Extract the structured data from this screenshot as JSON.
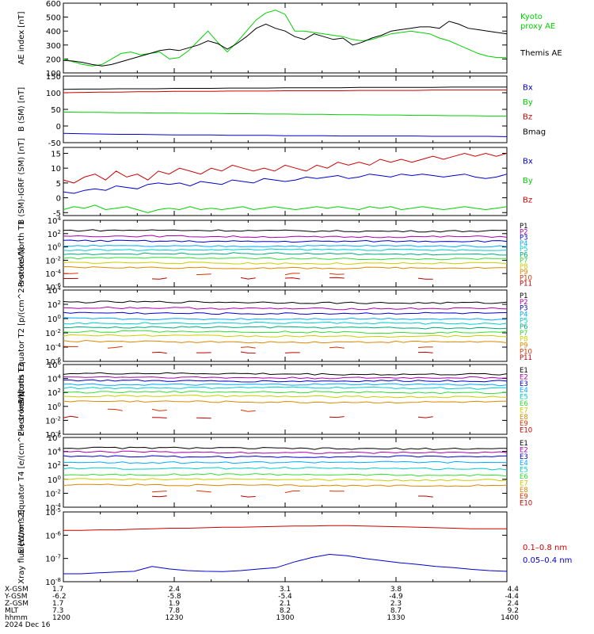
{
  "chart_data": [
    {
      "type": "line",
      "ylabel": "AE index [nT]",
      "ylim": [
        100,
        600
      ],
      "yticks": [
        100,
        200,
        300,
        400,
        500,
        600
      ],
      "scale": "linear",
      "series": [
        {
          "name": "Kyoto proxy AE",
          "color": "#00d000",
          "values": [
            200,
            180,
            160,
            150,
            160,
            200,
            240,
            250,
            230,
            240,
            250,
            200,
            210,
            260,
            330,
            400,
            320,
            250,
            320,
            400,
            480,
            530,
            550,
            520,
            400,
            400,
            390,
            380,
            370,
            360,
            340,
            330,
            340,
            360,
            380,
            390,
            400,
            390,
            380,
            350,
            330,
            300,
            270,
            240,
            220,
            210,
            210
          ]
        },
        {
          "name": "Themis AE",
          "color": "#000000",
          "values": [
            190,
            185,
            175,
            160,
            150,
            160,
            180,
            200,
            220,
            240,
            260,
            270,
            260,
            280,
            300,
            330,
            310,
            270,
            310,
            360,
            420,
            450,
            420,
            400,
            360,
            340,
            380,
            360,
            340,
            350,
            300,
            320,
            350,
            370,
            400,
            410,
            420,
            430,
            430,
            420,
            470,
            450,
            420,
            410,
            400,
            390,
            380
          ]
        }
      ]
    },
    {
      "type": "line",
      "ylabel": "B (SM) [nT]",
      "ylim": [
        -50,
        150
      ],
      "yticks": [
        -50,
        0,
        50,
        100,
        150
      ],
      "scale": "linear",
      "series": [
        {
          "name": "Bx",
          "color": "#0000cc",
          "values": [
            -22,
            -23,
            -24,
            -25,
            -25,
            -26,
            -27,
            -27,
            -27,
            -28,
            -28,
            -28,
            -29,
            -29,
            -29,
            -30,
            -30,
            -30,
            -30,
            -30,
            -31,
            -31,
            -31,
            -31,
            -32
          ]
        },
        {
          "name": "By",
          "color": "#00d000",
          "values": [
            42,
            41,
            41,
            40,
            40,
            39,
            39,
            38,
            38,
            37,
            37,
            36,
            36,
            35,
            35,
            34,
            34,
            33,
            33,
            32,
            32,
            31,
            31,
            30,
            30
          ]
        },
        {
          "name": "Bz",
          "color": "#cc0000",
          "values": [
            100,
            101,
            102,
            102,
            103,
            103,
            104,
            104,
            104,
            105,
            105,
            105,
            106,
            106,
            106,
            106,
            107,
            107,
            107,
            107,
            108,
            108,
            108,
            108,
            108
          ]
        },
        {
          "name": "Bmag",
          "color": "#000000",
          "values": [
            110,
            111,
            111,
            112,
            112,
            112,
            113,
            113,
            113,
            114,
            114,
            114,
            115,
            115,
            115,
            115,
            116,
            116,
            116,
            116,
            116,
            117,
            117,
            117,
            117
          ]
        }
      ]
    },
    {
      "type": "line",
      "ylabel": "B (SM)-IGRF (SM) [nT]",
      "ylim": [
        -6,
        17
      ],
      "yticks": [
        -5,
        0,
        5,
        10,
        15
      ],
      "scale": "linear",
      "series": [
        {
          "name": "Bx",
          "color": "#0000cc",
          "values": [
            2,
            1.5,
            2.5,
            3,
            2.5,
            4,
            3.5,
            3,
            4.5,
            5,
            4.5,
            5,
            4,
            5.5,
            5,
            4.5,
            6,
            5.5,
            5,
            6.5,
            6,
            5.5,
            6,
            7,
            6.5,
            7,
            7.5,
            6.5,
            7,
            8,
            7.5,
            7,
            8,
            7.5,
            8,
            7.5,
            7,
            7.5,
            8,
            7,
            6.5,
            7,
            8
          ]
        },
        {
          "name": "By",
          "color": "#00d000",
          "values": [
            -4,
            -3,
            -3.5,
            -2.5,
            -4,
            -3.5,
            -3,
            -4,
            -5,
            -4,
            -3.5,
            -4,
            -3,
            -4,
            -3.5,
            -4,
            -3.5,
            -3,
            -4,
            -3.5,
            -3,
            -3.5,
            -4,
            -3.5,
            -3,
            -3.5,
            -3,
            -3.5,
            -4,
            -3,
            -3.5,
            -3,
            -4,
            -3.5,
            -3,
            -3.5,
            -4,
            -3.5,
            -3,
            -3.5,
            -4,
            -3.5,
            -3
          ]
        },
        {
          "name": "Bz",
          "color": "#cc0000",
          "values": [
            6,
            5,
            7,
            8,
            6,
            9,
            7,
            8,
            6,
            9,
            8,
            10,
            9,
            8,
            10,
            9,
            11,
            10,
            9,
            10,
            9,
            11,
            10,
            9,
            11,
            10,
            12,
            11,
            12,
            11,
            13,
            12,
            13,
            12,
            13,
            14,
            13,
            14,
            15,
            14,
            15,
            14,
            15
          ]
        }
      ]
    },
    {
      "type": "line",
      "ylabel": "Protons North T1",
      "scale": "log",
      "ylim": [
        1e-06,
        10000.0
      ],
      "yticks": [
        "10^-6",
        "10^-4",
        "10^-2",
        "10^0",
        "10^2",
        "10^4"
      ],
      "legend": [
        {
          "name": "P1",
          "color": "#000000"
        },
        {
          "name": "P2",
          "color": "#aa00aa"
        },
        {
          "name": "P3",
          "color": "#0000cc"
        },
        {
          "name": "P4",
          "color": "#00aaff"
        },
        {
          "name": "P5",
          "color": "#00cccc"
        },
        {
          "name": "P6",
          "color": "#00aa77"
        },
        {
          "name": "P7",
          "color": "#33dd33"
        },
        {
          "name": "P8",
          "color": "#cccc00"
        },
        {
          "name": "P9",
          "color": "#dd8800"
        },
        {
          "name": "P10",
          "color": "#dd3300"
        },
        {
          "name": "P11",
          "color": "#bb0000"
        }
      ],
      "levels": [
        300,
        40,
        8,
        1.5,
        0.4,
        0.1,
        0.02,
        0.004,
        0.0008,
        0.0001,
        2e-05
      ]
    },
    {
      "type": "line",
      "ylabel": "Protons Equator T2 [p/(cm^2-s-sr-keV)]",
      "scale": "log",
      "ylim": [
        1e-06,
        10000.0
      ],
      "yticks": [
        "10^-6",
        "10^-4",
        "10^-2",
        "10^0",
        "10^2",
        "10^4"
      ],
      "legend": [
        {
          "name": "P1",
          "color": "#000000"
        },
        {
          "name": "P2",
          "color": "#aa00aa"
        },
        {
          "name": "P3",
          "color": "#0000cc"
        },
        {
          "name": "P4",
          "color": "#00aaff"
        },
        {
          "name": "P5",
          "color": "#00cccc"
        },
        {
          "name": "P6",
          "color": "#00aa77"
        },
        {
          "name": "P7",
          "color": "#33dd33"
        },
        {
          "name": "P8",
          "color": "#cccc00"
        },
        {
          "name": "P9",
          "color": "#dd8800"
        },
        {
          "name": "P10",
          "color": "#dd3300"
        },
        {
          "name": "P11",
          "color": "#bb0000"
        }
      ],
      "levels": [
        200,
        30,
        6,
        1,
        0.25,
        0.06,
        0.015,
        0.004,
        0.0006,
        0.0001,
        2e-05
      ]
    },
    {
      "type": "line",
      "ylabel": "Electrons North T3",
      "scale": "log",
      "ylim": [
        0.0001,
        1000000.0
      ],
      "yticks": [
        "10^-4",
        "10^-2",
        "10^0",
        "10^2",
        "10^4",
        "10^6"
      ],
      "legend": [
        {
          "name": "E1",
          "color": "#000000"
        },
        {
          "name": "E2",
          "color": "#aa00aa"
        },
        {
          "name": "E3",
          "color": "#0000cc"
        },
        {
          "name": "E4",
          "color": "#00aaff"
        },
        {
          "name": "E5",
          "color": "#00cccc"
        },
        {
          "name": "E6",
          "color": "#33dd33"
        },
        {
          "name": "E7",
          "color": "#cccc00"
        },
        {
          "name": "E8",
          "color": "#dd8800"
        },
        {
          "name": "E9",
          "color": "#dd3300"
        },
        {
          "name": "E10",
          "color": "#bb0000"
        }
      ],
      "levels": [
        50000,
        15000,
        5000,
        1500,
        500,
        120,
        30,
        5,
        0.3,
        0.03
      ]
    },
    {
      "type": "line",
      "ylabel": "Electrons Equator T4 [e/(cm^2-s-sr-keV)]",
      "scale": "log",
      "ylim": [
        0.0001,
        1000000.0
      ],
      "yticks": [
        "10^-4",
        "10^-2",
        "10^0",
        "10^2",
        "10^4",
        "10^6"
      ],
      "legend": [
        {
          "name": "E1",
          "color": "#000000"
        },
        {
          "name": "E2",
          "color": "#aa00aa"
        },
        {
          "name": "E3",
          "color": "#0000cc"
        },
        {
          "name": "E4",
          "color": "#00aaff"
        },
        {
          "name": "E5",
          "color": "#00cccc"
        },
        {
          "name": "E6",
          "color": "#33dd33"
        },
        {
          "name": "E7",
          "color": "#cccc00"
        },
        {
          "name": "E8",
          "color": "#dd8800"
        },
        {
          "name": "E9",
          "color": "#dd3300"
        },
        {
          "name": "E10",
          "color": "#bb0000"
        }
      ],
      "levels": [
        30000,
        8000,
        2000,
        300,
        40,
        5,
        1,
        0.15,
        0.02,
        0.004
      ]
    },
    {
      "type": "line",
      "ylabel": "Xray flux [W/m^2]",
      "scale": "log",
      "ylim": [
        1e-08,
        1e-05
      ],
      "yticks": [
        "10^-8",
        "10^-7",
        "10^-6",
        "10^-5"
      ],
      "series": [
        {
          "name": "0.1–0.8 nm",
          "color": "#cc0000",
          "values": [
            1.6e-06,
            1.6e-06,
            1.7e-06,
            1.7e-06,
            1.8e-06,
            1.9e-06,
            2e-06,
            2e-06,
            2.1e-06,
            2.2e-06,
            2.2e-06,
            2.3e-06,
            2.4e-06,
            2.5e-06,
            2.5e-06,
            2.6e-06,
            2.6e-06,
            2.5e-06,
            2.4e-06,
            2.3e-06,
            2.2e-06,
            2.1e-06,
            2e-06,
            1.9e-06,
            1.9e-06,
            1.9e-06
          ]
        },
        {
          "name": "0.05–0.4 nm",
          "color": "#0000cc",
          "values": [
            2.2e-08,
            2.2e-08,
            2.4e-08,
            2.6e-08,
            2.8e-08,
            4.5e-08,
            3.5e-08,
            3e-08,
            2.8e-08,
            2.7e-08,
            3e-08,
            3.5e-08,
            4e-08,
            7e-08,
            1.1e-07,
            1.5e-07,
            1.3e-07,
            1e-07,
            8e-08,
            6.5e-08,
            5.5e-08,
            4.5e-08,
            4e-08,
            3.4e-08,
            3e-08,
            2.8e-08
          ]
        }
      ]
    }
  ],
  "xaxis": {
    "rows": [
      {
        "label": "X-GSM",
        "values": [
          "1.7",
          "2.4",
          "3.1",
          "3.8",
          "4.4"
        ]
      },
      {
        "label": "Y-GSM",
        "values": [
          "-6.2",
          "-5.8",
          "-5.4",
          "-4.9",
          "-4.4"
        ]
      },
      {
        "label": "Z-GSM",
        "values": [
          "1.7",
          "1.9",
          "2.1",
          "2.3",
          "2.4"
        ]
      },
      {
        "label": "MLT",
        "values": [
          "7.3",
          "7.8",
          "8.2",
          "8.7",
          "9.2"
        ]
      },
      {
        "label": "hhmm",
        "values": [
          "1200",
          "1230",
          "1300",
          "1330",
          "1400"
        ]
      }
    ],
    "date": "2024 Dec 16"
  }
}
